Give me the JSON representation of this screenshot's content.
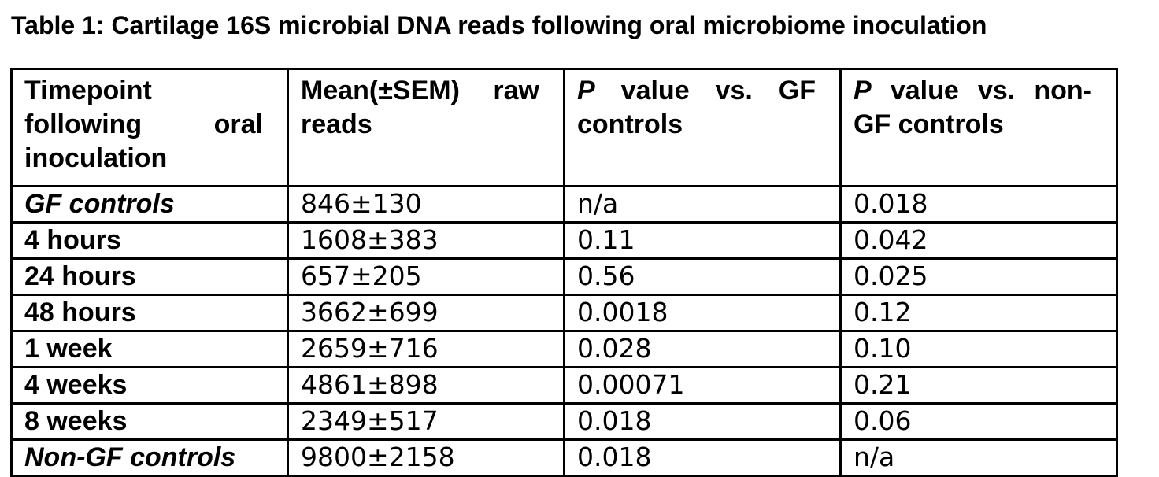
{
  "title": "Table 1: Cartilage 16S microbial DNA reads following oral microbiome inoculation",
  "table": {
    "headers": {
      "timepoint": "Timepoint following oral inoculation",
      "mean_reads": "Mean(±SEM) raw reads",
      "p_gf_prefix": "P",
      "p_gf_rest": "value vs. GF controls",
      "p_non_gf_prefix": "P",
      "p_non_gf_rest": "value vs. non-GF controls"
    },
    "rows": [
      {
        "timepoint": "GF controls",
        "reads": "846±130",
        "p_gf": "n/a",
        "p_ngf": "0.018"
      },
      {
        "timepoint": "4 hours",
        "reads": "1608±383",
        "p_gf": "0.11",
        "p_ngf": "0.042"
      },
      {
        "timepoint": "24 hours",
        "reads": "657±205",
        "p_gf": "0.56",
        "p_ngf": "0.025"
      },
      {
        "timepoint": "48 hours",
        "reads": "3662±699",
        "p_gf": "0.0018",
        "p_ngf": "0.12"
      },
      {
        "timepoint": "1 week",
        "reads": "2659±716",
        "p_gf": "0.028",
        "p_ngf": "0.10"
      },
      {
        "timepoint": "4 weeks",
        "reads": "4861±898",
        "p_gf": "0.00071",
        "p_ngf": "0.21"
      },
      {
        "timepoint": "8 weeks",
        "reads": "2349±517",
        "p_gf": "0.018",
        "p_ngf": "0.06"
      },
      {
        "timepoint": "Non-GF controls",
        "reads": "9800±2158",
        "p_gf": "0.018",
        "p_ngf": "n/a"
      }
    ]
  },
  "chart_data": {
    "type": "table",
    "title": "Table 1: Cartilage 16S microbial DNA reads following oral microbiome inoculation",
    "columns": [
      "Timepoint following oral inoculation",
      "Mean(±SEM) raw reads",
      "P value vs. GF controls",
      "P value vs. non-GF controls"
    ],
    "rows": [
      [
        "GF controls",
        "846±130",
        "n/a",
        "0.018"
      ],
      [
        "4 hours",
        "1608±383",
        "0.11",
        "0.042"
      ],
      [
        "24 hours",
        "657±205",
        "0.56",
        "0.025"
      ],
      [
        "48 hours",
        "3662±699",
        "0.0018",
        "0.12"
      ],
      [
        "1 week",
        "2659±716",
        "0.028",
        "0.10"
      ],
      [
        "4 weeks",
        "4861±898",
        "0.00071",
        "0.21"
      ],
      [
        "8 weeks",
        "2349±517",
        "0.018",
        "0.06"
      ],
      [
        "Non-GF controls",
        "9800±2158",
        "0.018",
        "n/a"
      ]
    ]
  }
}
